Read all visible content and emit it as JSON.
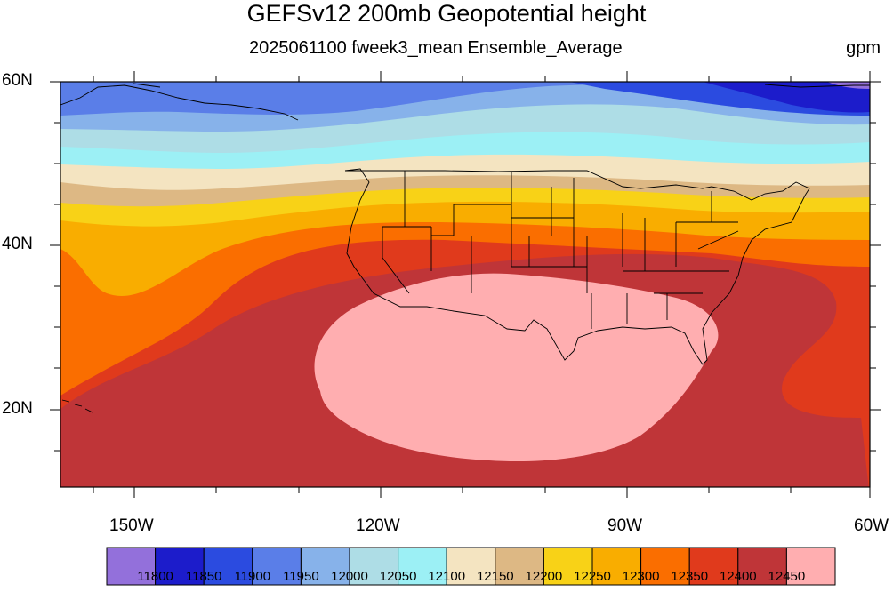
{
  "title": "GEFSv12 200mb Geopotential height",
  "subtitle": "2025061100 fweek3_mean Ensemble_Average",
  "units": "gpm",
  "lat_labels": [
    "60N",
    "40N",
    "20N"
  ],
  "lon_labels": [
    "150W",
    "120W",
    "90W",
    "60W"
  ],
  "colorbar": {
    "colors": [
      "#9370db",
      "#1c1ccb",
      "#2b4be0",
      "#5a7ee8",
      "#87b2ea",
      "#aedde6",
      "#9cf0f5",
      "#f4e4c1",
      "#ddb884",
      "#f8d217",
      "#f9ad00",
      "#fa6e00",
      "#e03a1c",
      "#bf3538",
      "#ffaeb0"
    ],
    "labels": [
      "11800",
      "11850",
      "11900",
      "11950",
      "12000",
      "12050",
      "12100",
      "12150",
      "12200",
      "12250",
      "12300",
      "12350",
      "12400",
      "12450"
    ]
  }
}
